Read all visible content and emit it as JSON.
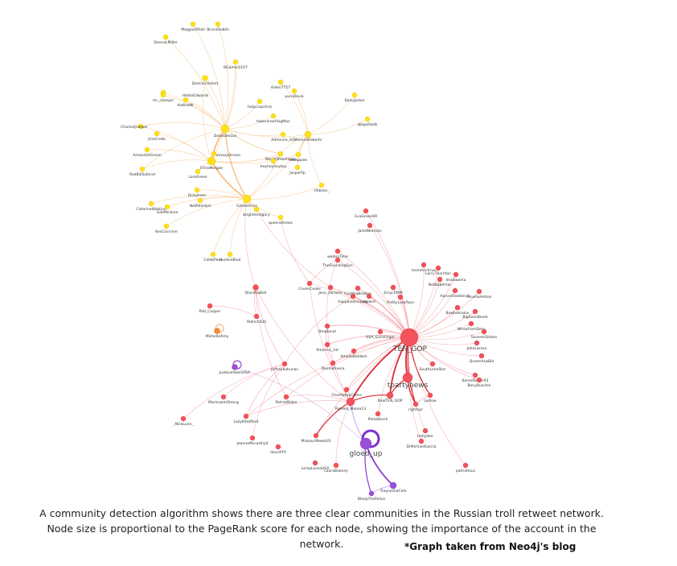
{
  "colors": {
    "yellow": "#ffe019",
    "yellow_edge": "#f5b066",
    "red": "#f2525a",
    "red_edge": "#f27b83",
    "purple": "#9a4fd6",
    "purple_edge": "#b47be6",
    "orange": "#f5912a"
  },
  "nodes": [
    {
      "label": "MeggieORiell",
      "c": "yellow"
    },
    {
      "label": "BruceDublin",
      "c": "yellow"
    },
    {
      "label": "DonnaLMiller",
      "c": "yellow"
    },
    {
      "label": "BGamer2107",
      "c": "yellow"
    },
    {
      "label": "DominicValent",
      "c": "yellow"
    },
    {
      "label": "Aiden7757",
      "c": "yellow"
    },
    {
      "label": "HettieEdwards",
      "c": "yellow"
    },
    {
      "label": "pureDevie",
      "c": "yellow"
    },
    {
      "label": "mr_clampin",
      "c": "yellow"
    },
    {
      "label": "KathieMr",
      "c": "yellow"
    },
    {
      "label": "holycrapchris",
      "c": "yellow"
    },
    {
      "label": "DaisyJedon",
      "c": "yellow"
    },
    {
      "label": "takecareof.bigMan",
      "c": "yellow"
    },
    {
      "label": "abigailtadk",
      "c": "yellow"
    },
    {
      "label": "CharlesJHarper",
      "c": "yellow"
    },
    {
      "label": "DanaGeezus",
      "c": "yellow"
    },
    {
      "label": "Adrienne_GG",
      "c": "yellow"
    },
    {
      "label": "MelvinSRoberts",
      "c": "yellow"
    },
    {
      "label": "JrneCrekk",
      "c": "yellow"
    },
    {
      "label": "AmandaVGreen",
      "c": "yellow"
    },
    {
      "label": "amanjohnson",
      "c": "yellow"
    },
    {
      "label": "WorldOfHashtags",
      "c": "yellow"
    },
    {
      "label": "ChrixMorgan",
      "c": "yellow"
    },
    {
      "label": "heyheyheykey",
      "c": "yellow"
    },
    {
      "label": "amappiee",
      "c": "yellow"
    },
    {
      "label": "JasperPp",
      "c": "yellow"
    },
    {
      "label": "RedBillSullend",
      "c": "yellow"
    },
    {
      "label": "LoreGreen",
      "c": "yellow"
    },
    {
      "label": "Dickyhem",
      "c": "yellow"
    },
    {
      "label": "Hhbsen_",
      "c": "yellow"
    },
    {
      "label": "NotRitaHart",
      "c": "yellow"
    },
    {
      "label": "GiselleEvns",
      "c": "yellow"
    },
    {
      "label": "CatarineWatkins",
      "c": "yellow"
    },
    {
      "label": "GatiMcilene",
      "c": "yellow"
    },
    {
      "label": "brightenstgory",
      "c": "yellow"
    },
    {
      "label": "queenofnews",
      "c": "yellow"
    },
    {
      "label": "KenCarrvine",
      "c": "yellow"
    },
    {
      "label": "CalebPeac",
      "c": "yellow"
    },
    {
      "label": "HuelinsBeal",
      "c": "yellow"
    },
    {
      "label": "EvaGreen69",
      "c": "red"
    },
    {
      "label": "JaredNorman",
      "c": "red"
    },
    {
      "label": "wadeaTime",
      "c": "red"
    },
    {
      "label": "TheFoundingSon",
      "c": "red"
    },
    {
      "label": "leventrichrue",
      "c": "red"
    },
    {
      "label": "LarryThornton",
      "c": "red"
    },
    {
      "label": "ImaSwama",
      "c": "red"
    },
    {
      "label": "NotBabtrHar",
      "c": "red"
    },
    {
      "label": "CovenCooks",
      "c": "red"
    },
    {
      "label": "DoorthaBell",
      "c": "red"
    },
    {
      "label": "Jenn_Abrams",
      "c": "red"
    },
    {
      "label": "CynthiaBrotton",
      "c": "red"
    },
    {
      "label": "Emyr1999",
      "c": "red"
    },
    {
      "label": "AaronVladimirch",
      "c": "red"
    },
    {
      "label": "AsveliaAmton",
      "c": "red"
    },
    {
      "label": "happkindsnappy",
      "c": "red"
    },
    {
      "label": "skewre",
      "c": "red"
    },
    {
      "label": "PrettyLaraPace",
      "c": "red"
    },
    {
      "label": "Bowhamalov",
      "c": "red"
    },
    {
      "label": "BigSeanBeset",
      "c": "red"
    },
    {
      "label": "Patl_Cooper",
      "c": "red"
    },
    {
      "label": "Aldrich420",
      "c": "red"
    },
    {
      "label": "Bmptonol",
      "c": "red"
    },
    {
      "label": "WireaFromDery",
      "c": "red"
    },
    {
      "label": "SovererSitales",
      "c": "red"
    },
    {
      "label": "MichelleAmy",
      "c": "orange"
    },
    {
      "label": "USA_Gunslinger",
      "c": "red"
    },
    {
      "label": "TEN_GOP",
      "c": "red"
    },
    {
      "label": "JohnLarsen",
      "c": "red"
    },
    {
      "label": "America_1st",
      "c": "red"
    },
    {
      "label": "AmelieBaldwin",
      "c": "red"
    },
    {
      "label": "QueenAnaBla",
      "c": "red"
    },
    {
      "label": "JudeLambertUSA",
      "c": "purple"
    },
    {
      "label": "JeffreyKahunas",
      "c": "red"
    },
    {
      "label": "DonnaRivera",
      "c": "red"
    },
    {
      "label": "SouthLoneStar",
      "c": "red"
    },
    {
      "label": "KarenParker93",
      "c": "red"
    },
    {
      "label": "tpartynews",
      "c": "red"
    },
    {
      "label": "BonyBuschin",
      "c": "red"
    },
    {
      "label": "ChesPakyaChess",
      "c": "red"
    },
    {
      "label": "MarissaImStrong",
      "c": "red"
    },
    {
      "label": "PatriotBlake",
      "c": "red"
    },
    {
      "label": "RealTEN_GOP",
      "c": "red"
    },
    {
      "label": "Lydlow",
      "c": "red"
    },
    {
      "label": "Pamela_Moore13",
      "c": "red"
    },
    {
      "label": "rightnpr",
      "c": "red"
    },
    {
      "label": "LazyKStafford",
      "c": "red"
    },
    {
      "label": "ParkeKinck",
      "c": "red"
    },
    {
      "label": "_NickLune_",
      "c": "red"
    },
    {
      "label": "Hollydler",
      "c": "red"
    },
    {
      "label": "JeanneMccarthy0",
      "c": "red"
    },
    {
      "label": "MissouriNewsUS",
      "c": "red"
    },
    {
      "label": "DrMichaelGarcia",
      "c": "red"
    },
    {
      "label": "deusXYX",
      "c": "red"
    },
    {
      "label": "gloed_up",
      "c": "purple"
    },
    {
      "label": "LeroyLovesUSA",
      "c": "red"
    },
    {
      "label": "LauraBaaney",
      "c": "red"
    },
    {
      "label": "patriotlous",
      "c": "red"
    },
    {
      "label": "TrayneshaCole",
      "c": "purple"
    },
    {
      "label": "BleepThePolice",
      "c": "purple"
    }
  ],
  "caption": {
    "line1": "A community detection algorithm shows there are three clear communities in the Russian troll retweet network.",
    "line2": "Node size is proportional to the PageRank score for each node, showing the importance of the account in the",
    "line3": "network."
  },
  "credit": "*Graph taken from Neo4j's blog"
}
